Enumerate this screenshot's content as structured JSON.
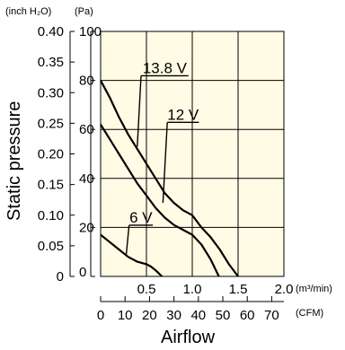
{
  "chart_data": {
    "type": "line",
    "title": "",
    "left_axis_units": [
      "(inch H₂O)",
      "(Pa)"
    ],
    "ylabel": "Static pressure",
    "xlabel": "Airflow",
    "x_units_primary": "(m³/min)",
    "x_units_secondary": "(CFM)",
    "xlim": [
      0,
      2.0
    ],
    "ylim": [
      0,
      100
    ],
    "grid": true,
    "x_ticks": [
      {
        "v": 0.5,
        "label": "0.5"
      },
      {
        "v": 1.0,
        "label": "1.0"
      },
      {
        "v": 1.5,
        "label": "1.5"
      },
      {
        "v": 2.0,
        "label": "2.0"
      }
    ],
    "cfm_ticks": [
      {
        "v": 0,
        "label": "0"
      },
      {
        "v": 10,
        "label": "10"
      },
      {
        "v": 20,
        "label": "20"
      },
      {
        "v": 30,
        "label": "30"
      },
      {
        "v": 40,
        "label": "40"
      },
      {
        "v": 50,
        "label": "50"
      },
      {
        "v": 60,
        "label": "60"
      },
      {
        "v": 70,
        "label": "70"
      }
    ],
    "pa_ticks": [
      {
        "v": 0,
        "label": "0"
      },
      {
        "v": 20,
        "label": "20"
      },
      {
        "v": 40,
        "label": "40"
      },
      {
        "v": 60,
        "label": "60"
      },
      {
        "v": 80,
        "label": "80"
      },
      {
        "v": 100,
        "label": "100"
      }
    ],
    "inch_ticks": [
      {
        "v": 0,
        "label": "0"
      },
      {
        "v": 0.05,
        "label": "0.05"
      },
      {
        "v": 0.1,
        "label": "0.10"
      },
      {
        "v": 0.15,
        "label": "0.15"
      },
      {
        "v": 0.2,
        "label": "0.20"
      },
      {
        "v": 0.25,
        "label": "0.25"
      },
      {
        "v": 0.3,
        "label": "0.30"
      },
      {
        "v": 0.35,
        "label": "0.35"
      },
      {
        "v": 0.4,
        "label": "0.40"
      }
    ],
    "series": [
      {
        "name": "13.8 V",
        "x": [
          0,
          0.1,
          0.2,
          0.3,
          0.4,
          0.5,
          0.6,
          0.7,
          0.8,
          0.9,
          1.0,
          1.1,
          1.2,
          1.3,
          1.4,
          1.5
        ],
        "y": [
          80,
          73,
          65,
          58,
          52,
          46,
          40,
          34,
          30,
          27,
          25,
          20,
          16,
          11,
          5,
          0
        ]
      },
      {
        "name": "12 V",
        "x": [
          0,
          0.1,
          0.2,
          0.3,
          0.4,
          0.5,
          0.6,
          0.7,
          0.8,
          0.9,
          1.0,
          1.1,
          1.2,
          1.29
        ],
        "y": [
          62,
          56,
          50,
          44,
          38,
          33,
          28,
          24,
          21,
          19,
          17,
          13,
          7,
          0
        ]
      },
      {
        "name": "6 V",
        "x": [
          0,
          0.1,
          0.2,
          0.3,
          0.4,
          0.5,
          0.55,
          0.6,
          0.67
        ],
        "y": [
          17,
          14,
          11,
          8,
          6,
          5,
          4,
          2.5,
          0
        ]
      }
    ],
    "labels": [
      {
        "text": "13.8 V",
        "ax": 0.4,
        "ay": 53,
        "lx": 0.7,
        "ly": 83
      },
      {
        "text": "12 V",
        "ax": 0.68,
        "ay": 30,
        "lx": 0.9,
        "ly": 64
      },
      {
        "text": "6 V",
        "ax": 0.28,
        "ay": 9,
        "lx": 0.44,
        "ly": 22
      }
    ]
  }
}
